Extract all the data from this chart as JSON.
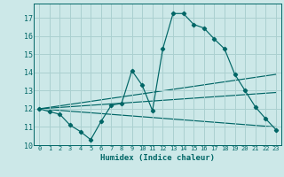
{
  "xlabel": "Humidex (Indice chaleur)",
  "xlim": [
    -0.5,
    23.5
  ],
  "ylim": [
    10,
    17.8
  ],
  "yticks": [
    10,
    11,
    12,
    13,
    14,
    15,
    16,
    17
  ],
  "xticks": [
    0,
    1,
    2,
    3,
    4,
    5,
    6,
    7,
    8,
    9,
    10,
    11,
    12,
    13,
    14,
    15,
    16,
    17,
    18,
    19,
    20,
    21,
    22,
    23
  ],
  "bg_color": "#cce8e8",
  "grid_color": "#aad0d0",
  "line_color": "#006666",
  "main_series_x": [
    0,
    1,
    2,
    3,
    4,
    5,
    6,
    7,
    8,
    9,
    10,
    11,
    12,
    13,
    14,
    15,
    16,
    17,
    18,
    19,
    20,
    21,
    22,
    23
  ],
  "main_series_y": [
    12.0,
    11.85,
    11.7,
    11.1,
    10.75,
    10.3,
    11.3,
    12.2,
    12.3,
    14.1,
    13.3,
    11.9,
    15.3,
    17.25,
    17.25,
    16.65,
    16.45,
    15.85,
    15.3,
    13.9,
    13.0,
    12.1,
    11.45,
    10.85
  ],
  "trend_lines": [
    {
      "x": [
        0,
        23
      ],
      "y": [
        12.0,
        11.0
      ]
    },
    {
      "x": [
        0,
        23
      ],
      "y": [
        12.0,
        12.9
      ]
    },
    {
      "x": [
        0,
        23
      ],
      "y": [
        12.0,
        13.9
      ]
    }
  ]
}
